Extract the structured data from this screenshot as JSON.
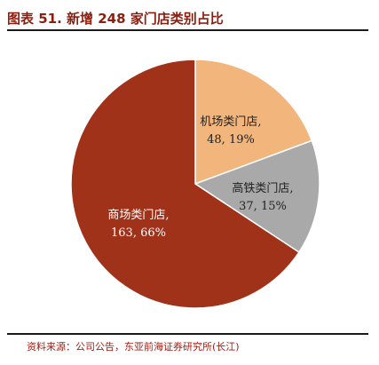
{
  "header": {
    "title": "图表 51. 新增 248 家门店类别占比"
  },
  "footer": {
    "source": "资料来源：公司公告，东亚前海证券研究所(长江)"
  },
  "chart_data": {
    "type": "pie",
    "title": "",
    "slices": [
      {
        "name": "机场类门店",
        "value": 48,
        "percent": 19,
        "label_line1": "机场类门店,",
        "label_line2": "48, 19%",
        "color": "#f2b57c",
        "label_color": "#222222"
      },
      {
        "name": "高铁类门店",
        "value": 37,
        "percent": 15,
        "label_line1": "高铁类门店,",
        "label_line2": "37, 15%",
        "color": "#a9a9a9",
        "label_color": "#222222"
      },
      {
        "name": "商场类门店",
        "value": 163,
        "percent": 66,
        "label_line1": "商场类门店,",
        "label_line2": "163, 66%",
        "color": "#a0321a",
        "label_color": "#ffffff"
      }
    ]
  }
}
